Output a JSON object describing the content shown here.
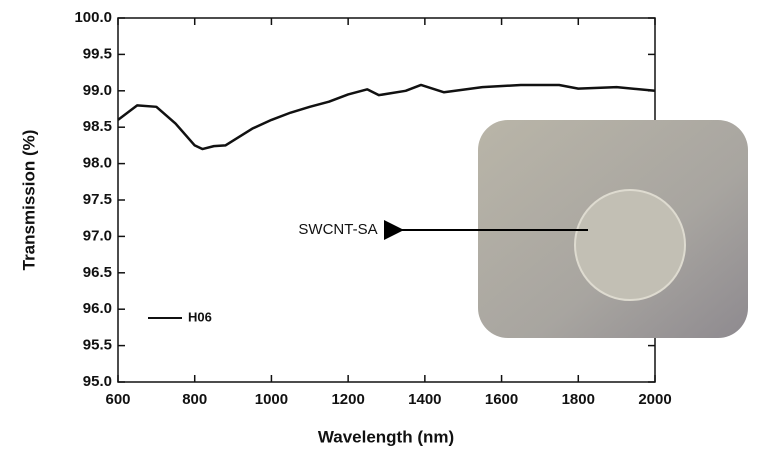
{
  "chart_data": {
    "type": "line",
    "xlabel": "Wavelength (nm)",
    "ylabel": "Transmission (%)",
    "x": [
      600,
      650,
      700,
      750,
      800,
      820,
      850,
      880,
      950,
      1000,
      1050,
      1100,
      1150,
      1200,
      1250,
      1280,
      1350,
      1390,
      1450,
      1550,
      1650,
      1750,
      1800,
      1900,
      2000
    ],
    "series": [
      {
        "name": "H06",
        "color": "#111111",
        "values": [
          98.6,
          98.8,
          98.78,
          98.55,
          98.25,
          98.2,
          98.24,
          98.25,
          98.48,
          98.6,
          98.7,
          98.78,
          98.85,
          98.95,
          99.02,
          98.94,
          99.0,
          99.08,
          98.98,
          99.05,
          99.08,
          99.08,
          99.03,
          99.05,
          99.0
        ]
      }
    ],
    "xlim": [
      600,
      2000
    ],
    "xticks": [
      600,
      800,
      1000,
      1200,
      1400,
      1600,
      1800,
      2000
    ],
    "ylim": [
      95,
      100
    ],
    "yticks": [
      {
        "value": 95,
        "label": "95.0"
      },
      95.5,
      {
        "value": 96,
        "label": "96.0"
      },
      96.5,
      {
        "value": 97,
        "label": "97.0"
      },
      97.5,
      {
        "value": 98,
        "label": "98.0"
      },
      98.5,
      {
        "value": 99,
        "label": "99.0"
      },
      99.5,
      {
        "value": 100,
        "label": "100.0"
      }
    ],
    "annotation": "SWCNT-SA"
  }
}
